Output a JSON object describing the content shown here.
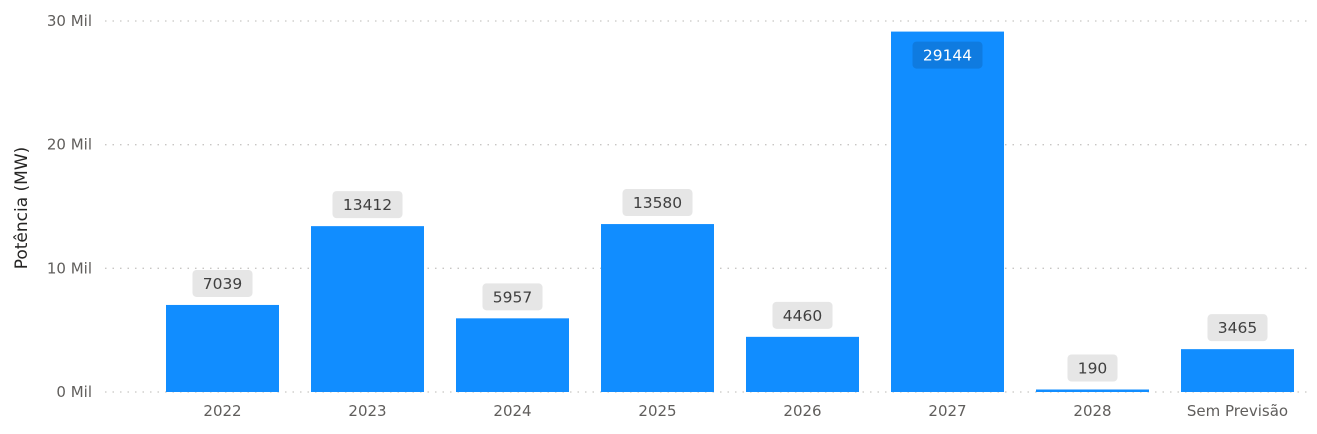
{
  "chart_data": {
    "type": "bar",
    "ylabel": "Potência (MW)",
    "categories": [
      "2022",
      "2023",
      "2024",
      "2025",
      "2026",
      "2027",
      "2028",
      "Sem Previsão"
    ],
    "values": [
      7039,
      13412,
      5957,
      13580,
      4460,
      29144,
      190,
      3465
    ],
    "data_labels": [
      "7039",
      "13412",
      "5957",
      "13580",
      "4460",
      "29144",
      "190",
      "3465"
    ],
    "y_ticks": [
      0,
      10000,
      20000,
      30000
    ],
    "y_tick_labels": [
      "0 Mil",
      "10 Mil",
      "20 Mil",
      "30 Mil"
    ],
    "ylim": [
      0,
      30000
    ],
    "grid": true,
    "legend": "none",
    "colors": {
      "bar": "#118DFF",
      "label_bg": "#e6e6e6",
      "label_text": "#404040",
      "label_bg_inside": "#0f7be0",
      "label_text_inside": "#ffffff"
    }
  }
}
